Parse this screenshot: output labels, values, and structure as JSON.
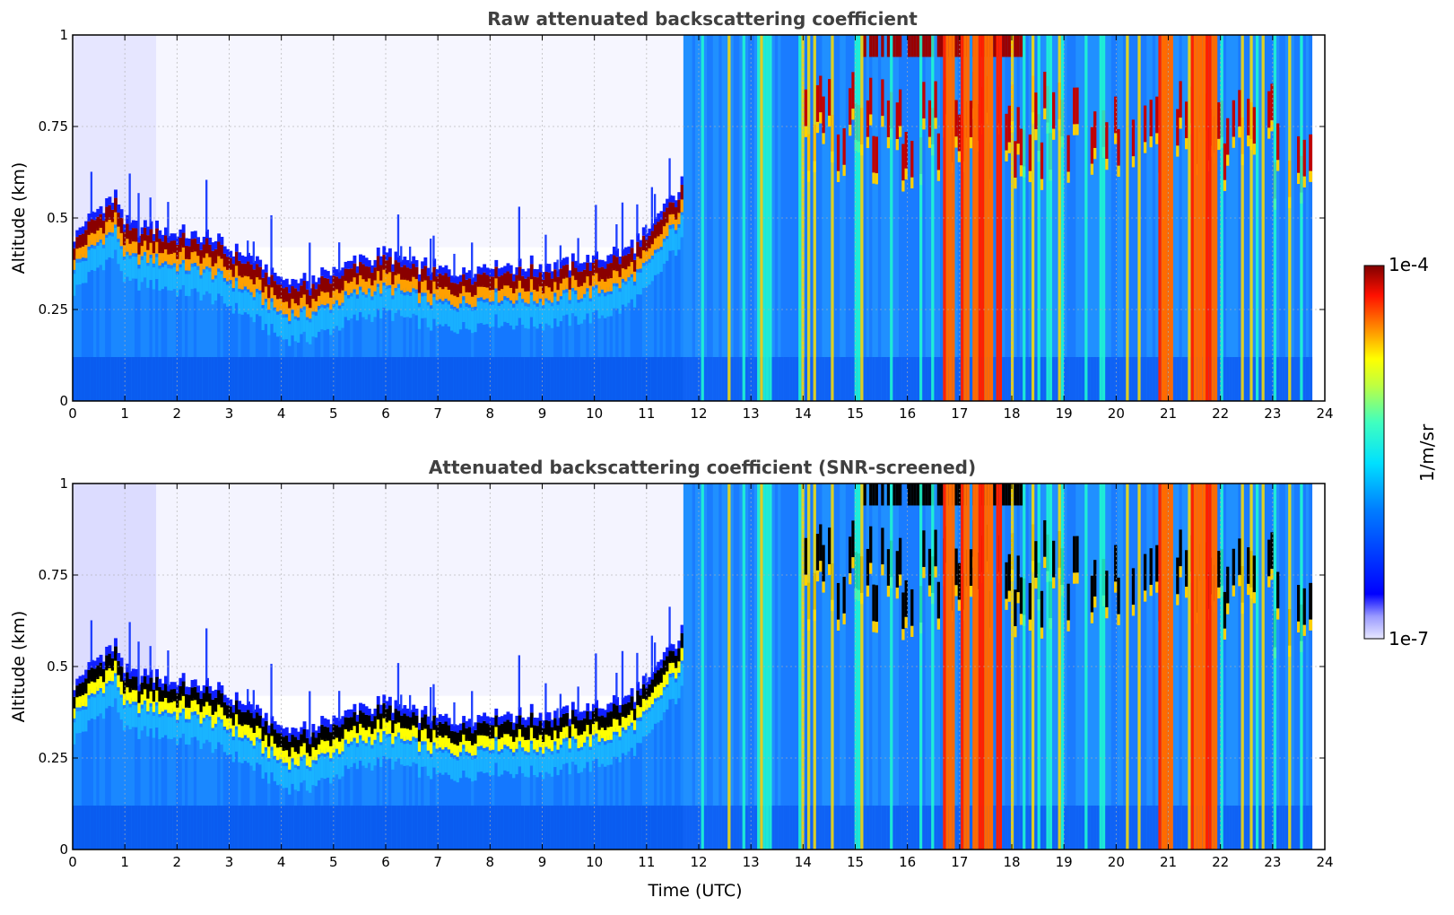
{
  "chart_data": [
    {
      "type": "heatmap",
      "title": "Raw attenuated backscattering coefficient",
      "xlabel": "",
      "ylabel": "Altitude (km)",
      "xlim": [
        0,
        24
      ],
      "ylim": [
        0,
        1
      ],
      "xticks": [
        "0",
        "1",
        "2",
        "3",
        "4",
        "5",
        "6",
        "7",
        "8",
        "9",
        "10",
        "11",
        "12",
        "13",
        "14",
        "15",
        "16",
        "17",
        "18",
        "19",
        "20",
        "21",
        "22",
        "23",
        "24"
      ],
      "yticks": [
        "0",
        "0.25",
        "0.5",
        "0.75",
        "1"
      ],
      "grid": true,
      "screened": false,
      "cloud_base_km": [
        [
          0.0,
          0.38
        ],
        [
          0.5,
          0.45
        ],
        [
          0.8,
          0.48
        ],
        [
          1.0,
          0.4
        ],
        [
          1.5,
          0.4
        ],
        [
          2.0,
          0.38
        ],
        [
          2.5,
          0.37
        ],
        [
          3.0,
          0.34
        ],
        [
          3.5,
          0.3
        ],
        [
          4.0,
          0.25
        ],
        [
          4.5,
          0.25
        ],
        [
          5.0,
          0.28
        ],
        [
          5.5,
          0.31
        ],
        [
          6.0,
          0.32
        ],
        [
          6.5,
          0.3
        ],
        [
          7.0,
          0.28
        ],
        [
          7.5,
          0.28
        ],
        [
          8.0,
          0.3
        ],
        [
          8.5,
          0.29
        ],
        [
          9.0,
          0.29
        ],
        [
          9.5,
          0.3
        ],
        [
          10.0,
          0.31
        ],
        [
          10.5,
          0.33
        ],
        [
          11.0,
          0.38
        ],
        [
          11.4,
          0.47
        ],
        [
          11.7,
          0.52
        ]
      ]
    },
    {
      "type": "heatmap",
      "title": "Attenuated backscattering coefficient (SNR-screened)",
      "xlabel": "Time (UTC)",
      "ylabel": "Altitude (km)",
      "xlim": [
        0,
        24
      ],
      "ylim": [
        0,
        1
      ],
      "xticks": [
        "0",
        "1",
        "2",
        "3",
        "4",
        "5",
        "6",
        "7",
        "8",
        "9",
        "10",
        "11",
        "12",
        "13",
        "14",
        "15",
        "16",
        "17",
        "18",
        "19",
        "20",
        "21",
        "22",
        "23",
        "24"
      ],
      "yticks": [
        "0",
        "0.25",
        "0.5",
        "0.75",
        "1"
      ],
      "grid": true,
      "screened": true,
      "cloud_base_km": [
        [
          0.0,
          0.38
        ],
        [
          0.5,
          0.45
        ],
        [
          0.8,
          0.48
        ],
        [
          1.0,
          0.4
        ],
        [
          1.5,
          0.4
        ],
        [
          2.0,
          0.38
        ],
        [
          2.5,
          0.37
        ],
        [
          3.0,
          0.34
        ],
        [
          3.5,
          0.3
        ],
        [
          4.0,
          0.25
        ],
        [
          4.5,
          0.25
        ],
        [
          5.0,
          0.28
        ],
        [
          5.5,
          0.31
        ],
        [
          6.0,
          0.32
        ],
        [
          6.5,
          0.3
        ],
        [
          7.0,
          0.28
        ],
        [
          7.5,
          0.28
        ],
        [
          8.0,
          0.3
        ],
        [
          8.5,
          0.29
        ],
        [
          9.0,
          0.29
        ],
        [
          9.5,
          0.3
        ],
        [
          10.0,
          0.31
        ],
        [
          10.5,
          0.33
        ],
        [
          11.0,
          0.38
        ],
        [
          11.4,
          0.47
        ],
        [
          11.7,
          0.52
        ]
      ]
    }
  ],
  "colorbar": {
    "label": "1/m/sr",
    "max_label": "1e-4",
    "min_label": "1e-7",
    "colormap": "jet",
    "scale": "log"
  }
}
